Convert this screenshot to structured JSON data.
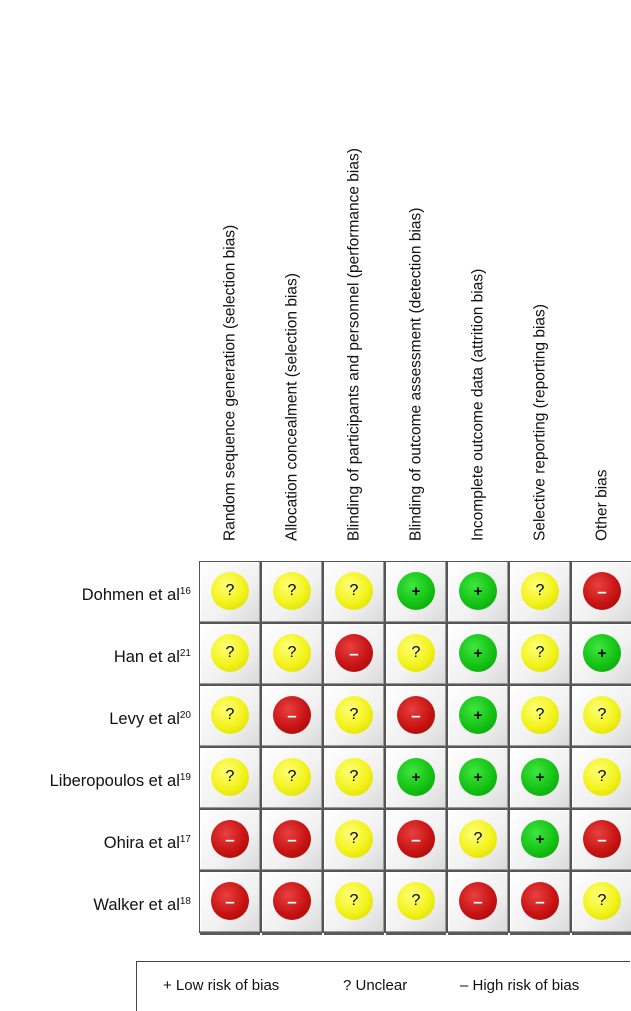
{
  "chart_data": {
    "type": "table",
    "columns": [
      "Random sequence generation (selection bias)",
      "Allocation concealment (selection bias)",
      "Blinding of participants and personnel (performance bias)",
      "Blinding of outcome assessment (detection bias)",
      "Incomplete outcome data (attrition bias)",
      "Selective reporting (reporting bias)",
      "Other bias"
    ],
    "rows": [
      {
        "study": "Dohmen et al",
        "ref": "16",
        "ratings": [
          "unclear",
          "unclear",
          "unclear",
          "low",
          "low",
          "unclear",
          "high"
        ]
      },
      {
        "study": "Han et al",
        "ref": "21",
        "ratings": [
          "unclear",
          "unclear",
          "high",
          "unclear",
          "low",
          "unclear",
          "low"
        ]
      },
      {
        "study": "Levy et al",
        "ref": "20",
        "ratings": [
          "unclear",
          "high",
          "unclear",
          "high",
          "low",
          "unclear",
          "unclear"
        ]
      },
      {
        "study": "Liberopoulos et al",
        "ref": "19",
        "ratings": [
          "unclear",
          "unclear",
          "unclear",
          "low",
          "low",
          "low",
          "unclear"
        ]
      },
      {
        "study": "Ohira et al",
        "ref": "17",
        "ratings": [
          "high",
          "high",
          "unclear",
          "high",
          "unclear",
          "low",
          "high"
        ]
      },
      {
        "study": "Walker et al",
        "ref": "18",
        "ratings": [
          "high",
          "high",
          "unclear",
          "unclear",
          "high",
          "high",
          "unclear"
        ]
      }
    ],
    "symbols": {
      "low": "+",
      "unclear": "?",
      "high": "–"
    },
    "colors": {
      "low": "#14c214",
      "unclear": "#f2f21a",
      "high": "#c81313"
    }
  },
  "legend": {
    "low": "+ Low risk of bias",
    "unclear": "? Unclear",
    "high": "– High risk of bias"
  }
}
